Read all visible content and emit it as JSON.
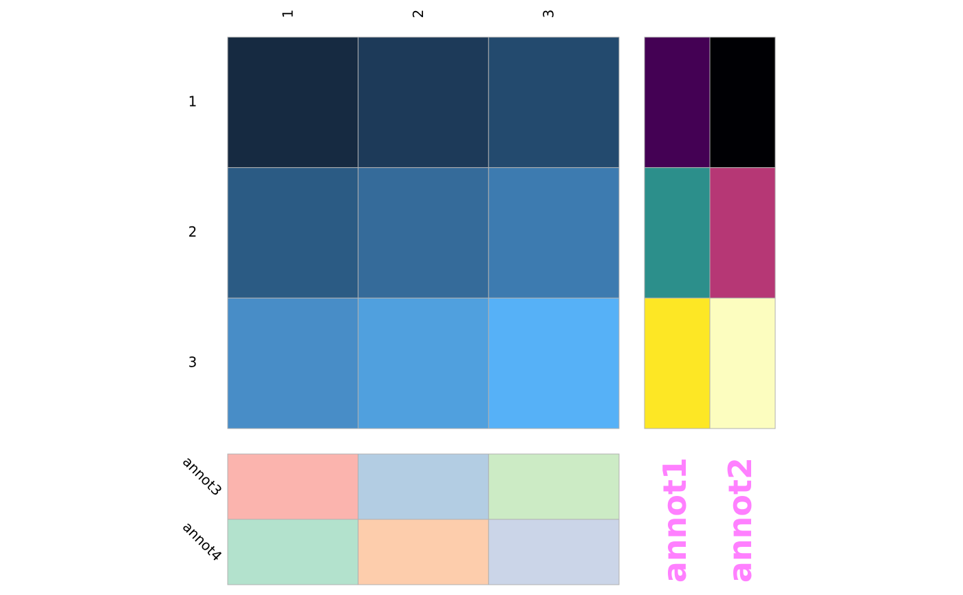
{
  "chart_data": {
    "type": "heatmap",
    "columns": [
      "1",
      "2",
      "3"
    ],
    "rows": [
      "1",
      "2",
      "3"
    ],
    "cell_colors": [
      [
        "#162a41",
        "#1d3a59",
        "#234a6e"
      ],
      [
        "#2b5b84",
        "#356b9a",
        "#3d7bb0"
      ],
      [
        "#488dc7",
        "#50a0de",
        "#56b1f7"
      ]
    ],
    "grid_color": "#b0b0b0",
    "row_annotations": {
      "labels": [
        "annot1",
        "annot2"
      ],
      "label_color": "#ff80ff",
      "colors": [
        [
          "#440154",
          "#000004"
        ],
        [
          "#2c8f8b",
          "#b63775"
        ],
        [
          "#fde725",
          "#fcfdbf"
        ]
      ]
    },
    "column_annotations": {
      "labels": [
        "annot3",
        "annot4"
      ],
      "colors": [
        [
          "#fbb4ae",
          "#b3cde3",
          "#ccebc5"
        ],
        [
          "#b3e2cd",
          "#fdcdac",
          "#cbd5e8"
        ]
      ]
    }
  }
}
